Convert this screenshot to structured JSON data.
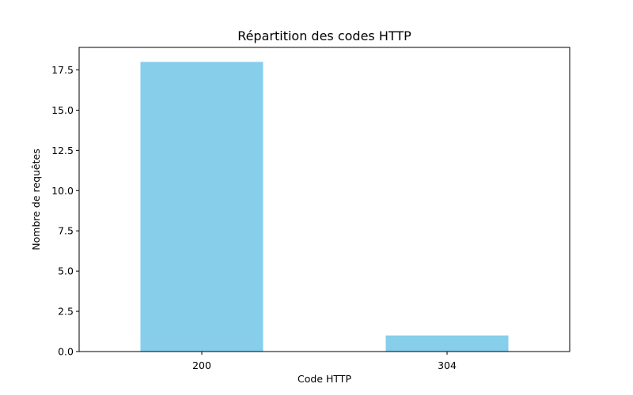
{
  "chart_data": {
    "type": "bar",
    "title": "Répartition des codes HTTP",
    "xlabel": "Code HTTP",
    "ylabel": "Nombre de requêtes",
    "categories": [
      "200",
      "304"
    ],
    "values": [
      18,
      1
    ],
    "ylim": [
      0,
      18.9
    ],
    "yticks": [
      0.0,
      2.5,
      5.0,
      7.5,
      10.0,
      12.5,
      15.0,
      17.5
    ],
    "ytick_labels": [
      "0.0",
      "2.5",
      "5.0",
      "7.5",
      "10.0",
      "12.5",
      "15.0",
      "17.5"
    ],
    "grid": false,
    "bar_color": "#87CEEB"
  }
}
